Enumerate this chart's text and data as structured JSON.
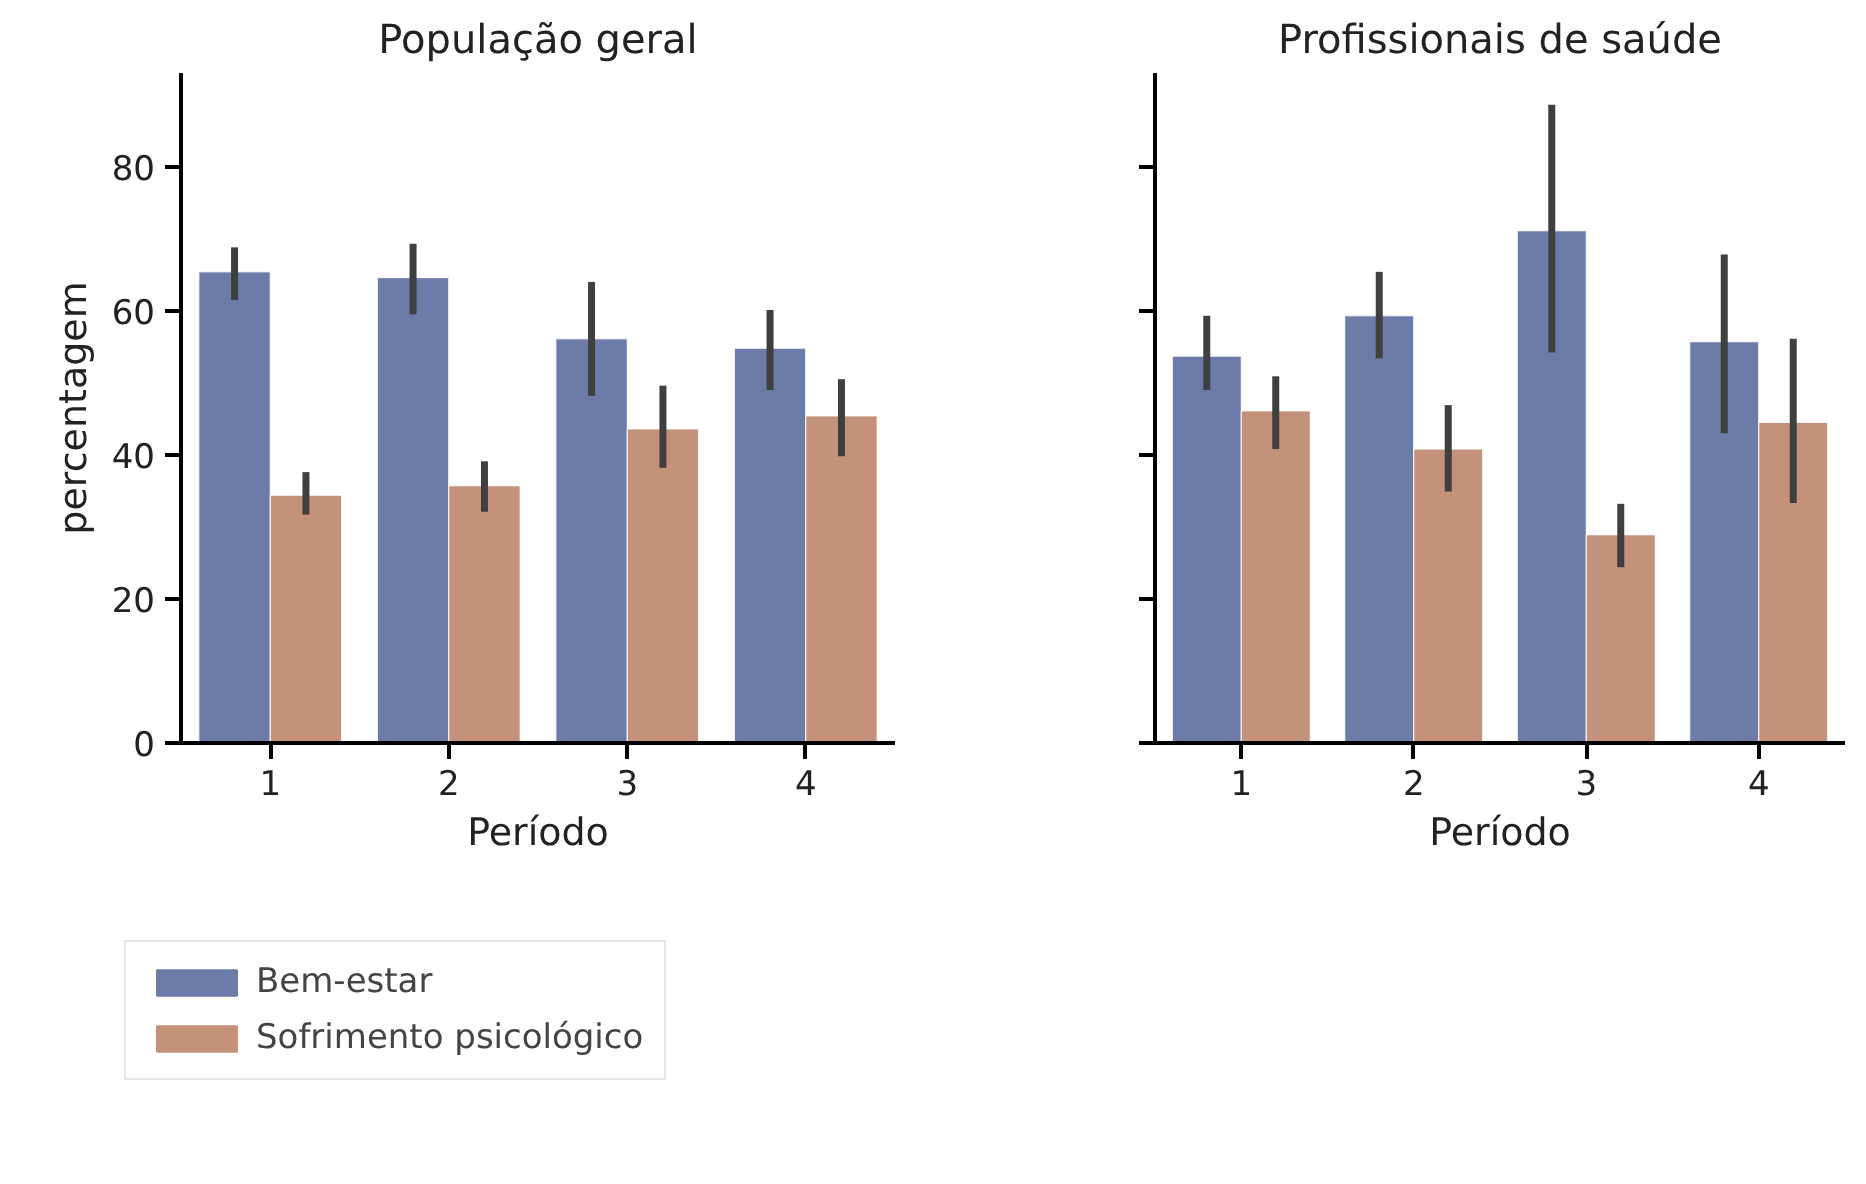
{
  "chart_data": [
    {
      "type": "bar",
      "title": "População geral",
      "xlabel": "Período",
      "ylabel": "percentagem",
      "categories": [
        "1",
        "2",
        "3",
        "4"
      ],
      "ylim": [
        0,
        93
      ],
      "yticks": [
        0,
        20,
        40,
        60,
        80
      ],
      "grid": false,
      "legend": "bottom left",
      "series": [
        {
          "name": "Bem-estar",
          "color": "#6d7ba8",
          "values": [
            65.4,
            64.6,
            56.1,
            54.8
          ],
          "errors": [
            [
              61.5,
              68.8
            ],
            [
              59.5,
              69.3
            ],
            [
              48.2,
              64.0
            ],
            [
              49.0,
              60.1
            ]
          ]
        },
        {
          "name": "Sofrimento psicológico",
          "color": "#c4917a",
          "values": [
            34.4,
            35.7,
            43.6,
            45.4
          ],
          "errors": [
            [
              31.7,
              37.6
            ],
            [
              32.1,
              39.1
            ],
            [
              38.2,
              49.6
            ],
            [
              39.8,
              50.5
            ]
          ]
        }
      ]
    },
    {
      "type": "bar",
      "title": "Profissionais de saúde",
      "xlabel": "Período",
      "categories": [
        "1",
        "2",
        "3",
        "4"
      ],
      "ylim": [
        0,
        93
      ],
      "yticks": [
        0,
        20,
        40,
        60,
        80
      ],
      "grid": false,
      "tick_labels": "x",
      "series": [
        {
          "color": "#6d7ba8",
          "values": [
            53.7,
            59.3,
            71.1,
            55.7
          ],
          "errors": [
            [
              49.0,
              59.3
            ],
            [
              53.4,
              65.4
            ],
            [
              54.2,
              88.6
            ],
            [
              43.0,
              67.8
            ]
          ]
        },
        {
          "color": "#c4917a",
          "values": [
            46.1,
            40.8,
            28.9,
            44.5
          ],
          "errors": [
            [
              40.8,
              50.9
            ],
            [
              34.9,
              46.9
            ],
            [
              24.4,
              33.2
            ],
            [
              33.3,
              56.1
            ]
          ]
        }
      ]
    }
  ]
}
